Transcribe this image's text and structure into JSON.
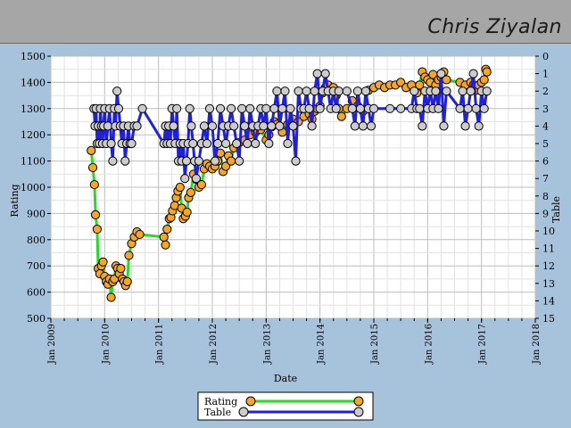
{
  "header": {
    "player_name": "Chris Ziyalan"
  },
  "colors": {
    "rating_line": "#22dd22",
    "rating_marker": "#f5a623",
    "table_line": "#1f1fe0",
    "table_marker": "#cccccc"
  },
  "chart_data": {
    "type": "line",
    "title": "",
    "xlabel": "Date",
    "ylabel": "Rating",
    "y2label": "Table",
    "xlim": [
      2009.0,
      2018.0
    ],
    "ylim": [
      500,
      1500
    ],
    "y2lim": [
      15,
      0
    ],
    "grid": true,
    "legend_position": "bottom-center",
    "x_ticks": [
      "Jan 2009",
      "Jan 2010",
      "Jan 2011",
      "Jan 2012",
      "Jan 2013",
      "Jan 2014",
      "Jan 2015",
      "Jan 2016",
      "Jan 2017",
      "Jan 2018"
    ],
    "y_ticks": [
      500,
      600,
      700,
      800,
      900,
      1000,
      1100,
      1200,
      1300,
      1400,
      1500
    ],
    "y2_ticks": [
      0,
      1,
      2,
      3,
      4,
      5,
      6,
      7,
      8,
      9,
      10,
      11,
      12,
      13,
      14,
      15
    ],
    "series": [
      {
        "name": "Rating",
        "axis": "left",
        "x": [
          2009.75,
          2009.78,
          2009.81,
          2009.83,
          2009.86,
          2009.88,
          2009.91,
          2009.94,
          2009.97,
          2010.0,
          2010.03,
          2010.06,
          2010.09,
          2010.12,
          2010.15,
          2010.18,
          2010.21,
          2010.24,
          2010.27,
          2010.3,
          2010.33,
          2010.36,
          2010.39,
          2010.42,
          2010.45,
          2010.5,
          2010.55,
          2010.6,
          2010.65,
          2011.1,
          2011.13,
          2011.16,
          2011.2,
          2011.23,
          2011.26,
          2011.3,
          2011.33,
          2011.36,
          2011.4,
          2011.43,
          2011.46,
          2011.5,
          2011.53,
          2011.56,
          2011.6,
          2011.65,
          2011.7,
          2011.75,
          2011.8,
          2011.85,
          2011.9,
          2011.95,
          2012.0,
          2012.05,
          2012.1,
          2012.15,
          2012.2,
          2012.25,
          2012.3,
          2012.35,
          2012.4,
          2012.5,
          2012.6,
          2012.7,
          2012.8,
          2012.9,
          2013.0,
          2013.05,
          2013.1,
          2013.15,
          2013.2,
          2013.3,
          2013.4,
          2013.5,
          2013.6,
          2013.7,
          2013.8,
          2013.85,
          2013.9,
          2013.95,
          2014.0,
          2014.05,
          2014.1,
          2014.15,
          2014.2,
          2014.25,
          2014.3,
          2014.35,
          2014.4,
          2014.5,
          2014.6,
          2014.7,
          2014.8,
          2014.9,
          2015.0,
          2015.1,
          2015.2,
          2015.3,
          2015.4,
          2015.5,
          2015.6,
          2015.7,
          2015.8,
          2015.85,
          2015.9,
          2015.95,
          2016.0,
          2016.05,
          2016.1,
          2016.15,
          2016.2,
          2016.25,
          2016.3,
          2016.35,
          2016.6,
          2016.7,
          2016.8,
          2016.85,
          2016.9,
          2016.95,
          2017.0,
          2017.05,
          2017.08,
          2017.1
        ],
        "values": [
          1140,
          1075,
          1010,
          895,
          840,
          690,
          670,
          700,
          715,
          660,
          640,
          630,
          650,
          580,
          640,
          650,
          700,
          690,
          670,
          690,
          650,
          640,
          625,
          640,
          740,
          785,
          810,
          830,
          820,
          810,
          780,
          840,
          880,
          885,
          910,
          930,
          960,
          985,
          1000,
          920,
          880,
          890,
          905,
          960,
          980,
          1050,
          1030,
          1000,
          1010,
          1070,
          1090,
          1080,
          1070,
          1080,
          1100,
          1130,
          1060,
          1080,
          1120,
          1100,
          1150,
          1170,
          1180,
          1200,
          1210,
          1220,
          1180,
          1200,
          1230,
          1250,
          1240,
          1210,
          1240,
          1260,
          1250,
          1270,
          1280,
          1260,
          1290,
          1300,
          1310,
          1360,
          1380,
          1390,
          1370,
          1380,
          1350,
          1300,
          1270,
          1300,
          1330,
          1310,
          1290,
          1370,
          1380,
          1390,
          1380,
          1390,
          1390,
          1400,
          1380,
          1390,
          1360,
          1390,
          1440,
          1420,
          1410,
          1400,
          1430,
          1390,
          1410,
          1420,
          1440,
          1410,
          1400,
          1390,
          1400,
          1390,
          1370,
          1390,
          1400,
          1410,
          1450,
          1440
        ]
      },
      {
        "name": "Table",
        "axis": "right",
        "x": [
          2009.8,
          2009.82,
          2009.84,
          2009.86,
          2009.88,
          2009.9,
          2009.92,
          2009.94,
          2009.96,
          2009.98,
          2010.0,
          2010.03,
          2010.06,
          2010.09,
          2010.12,
          2010.15,
          2010.18,
          2010.2,
          2010.23,
          2010.26,
          2010.29,
          2010.32,
          2010.35,
          2010.38,
          2010.41,
          2010.44,
          2010.47,
          2010.5,
          2010.55,
          2010.6,
          2010.7,
          2011.1,
          2011.13,
          2011.16,
          2011.19,
          2011.22,
          2011.25,
          2011.28,
          2011.31,
          2011.34,
          2011.37,
          2011.4,
          2011.43,
          2011.46,
          2011.49,
          2011.52,
          2011.55,
          2011.58,
          2011.61,
          2011.64,
          2011.67,
          2011.7,
          2011.75,
          2011.8,
          2011.85,
          2011.9,
          2011.95,
          2012.0,
          2012.05,
          2012.1,
          2012.15,
          2012.2,
          2012.25,
          2012.3,
          2012.35,
          2012.4,
          2012.45,
          2012.5,
          2012.55,
          2012.6,
          2012.65,
          2012.7,
          2012.75,
          2012.8,
          2012.85,
          2012.9,
          2012.95,
          2013.0,
          2013.05,
          2013.1,
          2013.15,
          2013.2,
          2013.25,
          2013.3,
          2013.35,
          2013.4,
          2013.45,
          2013.5,
          2013.55,
          2013.6,
          2013.65,
          2013.7,
          2013.75,
          2013.8,
          2013.85,
          2013.9,
          2013.95,
          2014.0,
          2014.05,
          2014.1,
          2014.15,
          2014.2,
          2014.25,
          2014.3,
          2014.35,
          2014.5,
          2014.6,
          2014.65,
          2014.7,
          2014.75,
          2014.8,
          2014.85,
          2014.9,
          2014.95,
          2015.0,
          2015.3,
          2015.5,
          2015.7,
          2015.75,
          2015.8,
          2015.85,
          2015.9,
          2015.95,
          2016.0,
          2016.05,
          2016.1,
          2016.15,
          2016.2,
          2016.25,
          2016.3,
          2016.35,
          2016.6,
          2016.65,
          2016.7,
          2016.75,
          2016.8,
          2016.85,
          2016.9,
          2016.95,
          2017.0,
          2017.05,
          2017.1
        ],
        "values": [
          3,
          4,
          3,
          5,
          4,
          5,
          3,
          4,
          5,
          4,
          3,
          5,
          4,
          3,
          5,
          6,
          3,
          4,
          2,
          3,
          4,
          5,
          4,
          6,
          5,
          4,
          5,
          5,
          4,
          4,
          3,
          5,
          4,
          5,
          4,
          5,
          3,
          4,
          5,
          3,
          6,
          5,
          6,
          5,
          7,
          6,
          5,
          3,
          4,
          5,
          6,
          7,
          6,
          5,
          4,
          5,
          3,
          4,
          6,
          5,
          3,
          4,
          5,
          4,
          3,
          4,
          5,
          6,
          3,
          4,
          5,
          3,
          4,
          5,
          4,
          3,
          4,
          3,
          5,
          4,
          3,
          2,
          4,
          3,
          2,
          5,
          3,
          4,
          6,
          2,
          3,
          3,
          2,
          3,
          4,
          2,
          1,
          3,
          2,
          1,
          2,
          3,
          2,
          3,
          2,
          2,
          3,
          4,
          2,
          3,
          4,
          2,
          3,
          4,
          3,
          3,
          3,
          3,
          2,
          3,
          3,
          4,
          2,
          3,
          2,
          3,
          2,
          3,
          1,
          4,
          2,
          3,
          2,
          4,
          3,
          2,
          1,
          3,
          4,
          2,
          3,
          2
        ]
      }
    ]
  }
}
